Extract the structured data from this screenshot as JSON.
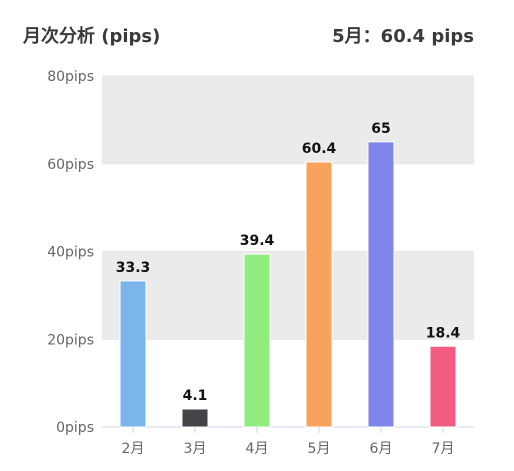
{
  "header": {
    "title": "月次分析 (pips)",
    "summary": "5月：60.4 pips"
  },
  "chart_data": {
    "type": "bar",
    "title": "月次分析 (pips)",
    "categories": [
      "2月",
      "3月",
      "4月",
      "5月",
      "6月",
      "7月"
    ],
    "values": [
      33.3,
      4.1,
      39.4,
      60.4,
      65,
      18.4
    ],
    "data_labels": [
      "33.3",
      "4.1",
      "39.4",
      "60.4",
      "65",
      "18.4"
    ],
    "bar_colors": [
      "#7cb5ec",
      "#434348",
      "#90ed7d",
      "#f7a35c",
      "#8085e9",
      "#f15c80"
    ],
    "ylim": [
      0,
      80
    ],
    "yticks": [
      0,
      20,
      40,
      60,
      80
    ],
    "ytick_labels": [
      "0pips",
      "20pips",
      "40pips",
      "60pips",
      "80pips"
    ],
    "band_color": "#ebebeb",
    "grid": true,
    "xlabel": "",
    "ylabel": ""
  }
}
